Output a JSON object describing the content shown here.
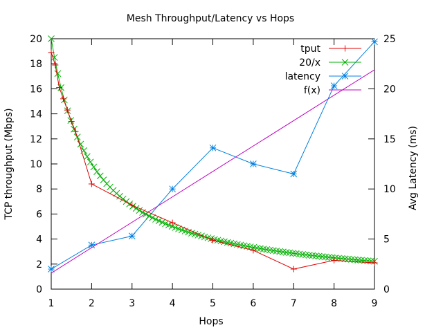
{
  "chart_data": {
    "type": "line",
    "title": "Mesh Throughput/Latency vs Hops",
    "xlabel": "Hops",
    "ylabel": "TCP throughput (Mbps)",
    "y2label": "Avg Latency (ms)",
    "xlim": [
      1,
      9
    ],
    "ylim": [
      0,
      20
    ],
    "y2lim": [
      0,
      25
    ],
    "x_ticks": [
      "1",
      "2",
      "3",
      "4",
      "5",
      "6",
      "7",
      "8",
      "9"
    ],
    "y_ticks": [
      "0",
      "2",
      "4",
      "6",
      "8",
      "10",
      "12",
      "14",
      "16",
      "18",
      "20"
    ],
    "y2_ticks": [
      "0",
      "5",
      "10",
      "15",
      "20",
      "25"
    ],
    "grid": false,
    "legend_position": "top-right",
    "series": [
      {
        "name": "tput",
        "axis": "left",
        "color": "#e00000",
        "marker": "plus",
        "x": [
          1,
          1.1,
          1.2,
          1.3,
          1.4,
          1.5,
          1.6,
          2,
          3,
          4,
          5,
          6,
          7,
          8,
          9
        ],
        "values": [
          18.9,
          17.9,
          16.1,
          15.2,
          14.3,
          13.4,
          12.6,
          8.4,
          6.7,
          5.3,
          3.9,
          3.1,
          1.6,
          2.3,
          2.1
        ]
      },
      {
        "name": "20/x",
        "axis": "left",
        "color": "#00b000",
        "marker": "cross",
        "function": "20/x",
        "samples": 100
      },
      {
        "name": "latency",
        "axis": "right",
        "color": "#0080e0",
        "marker": "star",
        "x": [
          1,
          2,
          3,
          4,
          5,
          6,
          7,
          8,
          9
        ],
        "values": [
          2.0,
          4.4,
          5.3,
          10.0,
          14.1,
          12.5,
          11.5,
          20.3,
          24.7
        ]
      },
      {
        "name": "f(x)",
        "axis": "right",
        "color": "#c000c0",
        "marker": "none",
        "x": [
          1,
          9
        ],
        "values": [
          1.6,
          21.9
        ]
      }
    ]
  }
}
